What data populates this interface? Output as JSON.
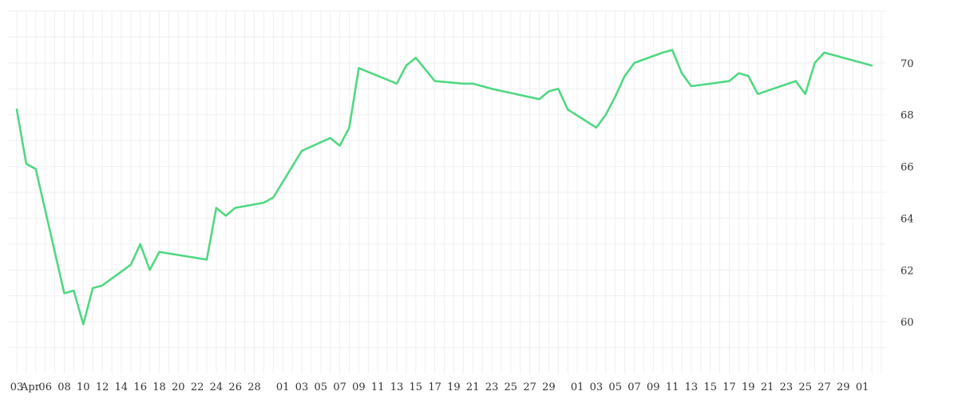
{
  "chart_data": {
    "type": "line",
    "title": "",
    "xlabel": "",
    "ylabel": "",
    "grid": true,
    "ylim": [
      58,
      72
    ],
    "x_tick_labels": [
      "03",
      "Apr",
      "06",
      "08",
      "10",
      "12",
      "14",
      "16",
      "18",
      "20",
      "22",
      "24",
      "26",
      "28",
      "01",
      "03",
      "05",
      "07",
      "09",
      "11",
      "13",
      "15",
      "17",
      "19",
      "21",
      "23",
      "25",
      "27",
      "29",
      "01",
      "03",
      "05",
      "07",
      "09",
      "11",
      "13",
      "15",
      "17",
      "19",
      "21",
      "23",
      "25",
      "27",
      "29",
      "01"
    ],
    "y_tick_labels": [
      "60",
      "62",
      "64",
      "66",
      "68",
      "70"
    ],
    "y_ticks": [
      60,
      62,
      64,
      66,
      68,
      70
    ],
    "series": [
      {
        "color": "#50d882",
        "x": [
          "2024-04-03",
          "2024-04-04",
          "2024-04-05",
          "2024-04-08",
          "2024-04-09",
          "2024-04-10",
          "2024-04-11",
          "2024-04-12",
          "2024-04-15",
          "2024-04-16",
          "2024-04-17",
          "2024-04-18",
          "2024-04-23",
          "2024-04-24",
          "2024-04-25",
          "2024-04-26",
          "2024-04-29",
          "2024-04-30",
          "2024-05-01",
          "2024-05-03",
          "2024-05-06",
          "2024-05-07",
          "2024-05-08",
          "2024-05-09",
          "2024-05-13",
          "2024-05-14",
          "2024-05-15",
          "2024-05-17",
          "2024-05-20",
          "2024-05-21",
          "2024-05-22",
          "2024-05-23",
          "2024-05-28",
          "2024-05-29",
          "2024-05-30",
          "2024-05-31",
          "2024-06-03",
          "2024-06-04",
          "2024-06-05",
          "2024-06-06",
          "2024-06-07",
          "2024-06-10",
          "2024-06-11",
          "2024-06-12",
          "2024-06-13",
          "2024-06-17",
          "2024-06-18",
          "2024-06-19",
          "2024-06-20",
          "2024-06-24",
          "2024-06-25",
          "2024-06-26",
          "2024-06-27",
          "2024-06-28",
          "2024-07-02"
        ],
        "y": [
          68.2,
          66.1,
          65.9,
          61.1,
          61.2,
          59.9,
          61.3,
          61.4,
          62.2,
          63.0,
          62.0,
          62.7,
          62.4,
          64.4,
          64.1,
          64.4,
          64.6,
          64.8,
          65.4,
          66.6,
          67.1,
          66.8,
          67.5,
          69.8,
          69.2,
          69.9,
          70.2,
          69.3,
          69.2,
          69.2,
          69.1,
          69.0,
          68.6,
          68.9,
          69.0,
          68.2,
          67.5,
          68.0,
          68.7,
          69.5,
          70.0,
          70.4,
          70.5,
          69.6,
          69.1,
          69.3,
          69.6,
          69.5,
          68.8,
          69.3,
          68.8,
          70.0,
          70.4,
          70.3,
          69.9
        ]
      }
    ]
  }
}
